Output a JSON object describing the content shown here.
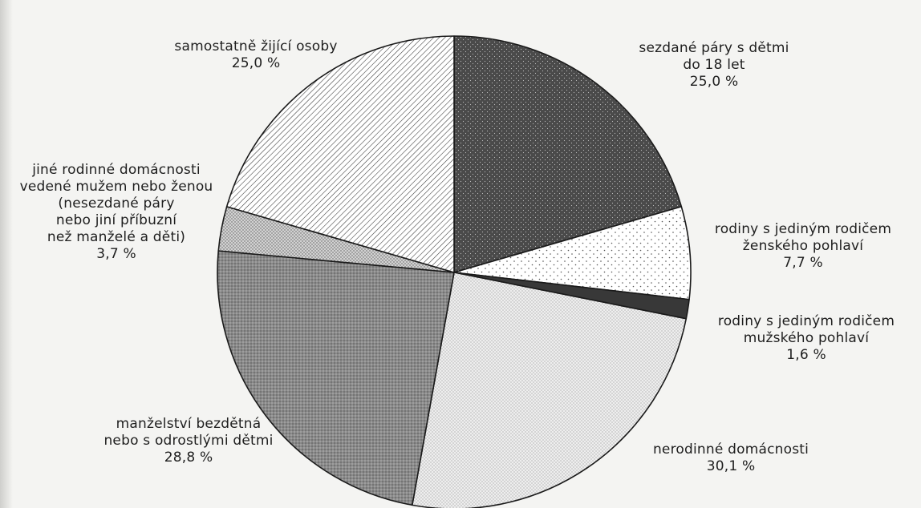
{
  "chart_data": {
    "type": "pie",
    "start_angle_deg": 0,
    "direction": "clockwise",
    "colors": {
      "sezdane": "#4a4a4a",
      "zenske": "#ffffff",
      "muzske": "#383838",
      "nerodinne": "#e6e6e6",
      "manzelstvi": "#8e8e8e",
      "jine": "#c4c4c4",
      "samostatne": "#ffffff"
    },
    "slices": [
      {
        "key": "sezdane",
        "value": 25.0,
        "value_label": "25,0 %",
        "label_lines": [
          "sezdané páry s dětmi",
          "do 18 let"
        ],
        "fill": "dots-dark"
      },
      {
        "key": "zenske",
        "value": 7.7,
        "value_label": "7,7 %",
        "label_lines": [
          "rodiny s jediným rodičem",
          "ženského pohlaví"
        ],
        "fill": "dots-sparse"
      },
      {
        "key": "muzske",
        "value": 1.6,
        "value_label": "1,6 %",
        "label_lines": [
          "rodiny s jediným rodičem",
          "mužského pohlaví"
        ],
        "fill": "solid-dark"
      },
      {
        "key": "nerodinne",
        "value": 30.1,
        "value_label": "30,1 %",
        "label_lines": [
          "nerodinné domácnosti"
        ],
        "fill": "dots-fine"
      },
      {
        "key": "manzelstvi",
        "value": 28.8,
        "value_label": "28,8 %",
        "label_lines": [
          "manželství bezdětná",
          "nebo s odrostlými dětmi"
        ],
        "fill": "dots-medium"
      },
      {
        "key": "jine",
        "value": 3.7,
        "value_label": "3,7 %",
        "label_lines": [
          "jiné rodinné domácnosti",
          "vedené mužem nebo ženou",
          "(nesezdané páry",
          "nebo jiní příbuzní",
          "než manželé a děti)"
        ],
        "fill": "crosshatch"
      },
      {
        "key": "samostatne",
        "value": 25.0,
        "value_label": "25,0 %",
        "label_lines": [
          "samostatně žijící osoby"
        ],
        "fill": "diagonal"
      }
    ]
  }
}
